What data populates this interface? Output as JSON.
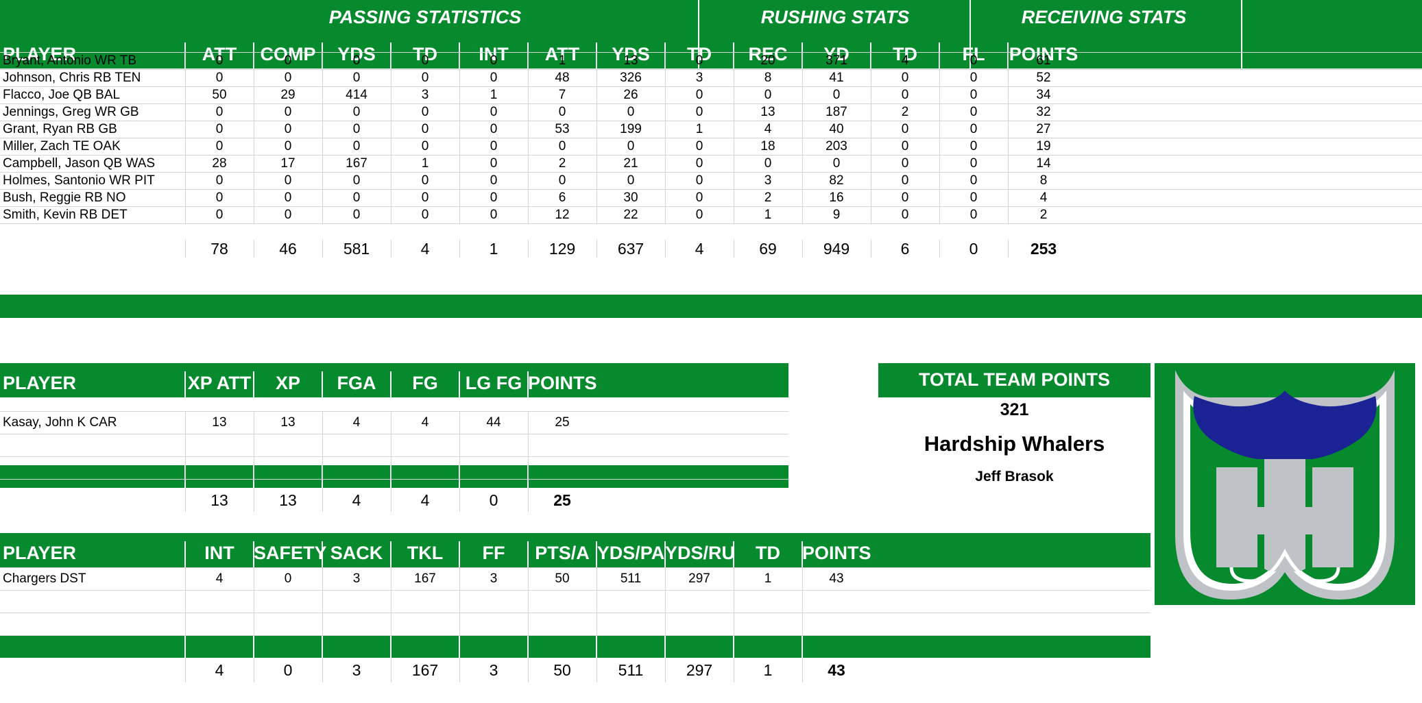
{
  "offense": {
    "groups": {
      "passing": "PASSING STATISTICS",
      "rushing": "RUSHING STATS",
      "receiving": "RECEIVING STATS"
    },
    "columns": [
      "PLAYER",
      "ATT",
      "COMP",
      "YDS",
      "TD",
      "INT",
      "ATT",
      "YDS",
      "TD",
      "REC",
      "YD",
      "TD",
      "FL",
      "POINTS"
    ],
    "rows": [
      [
        "Bryant, Antonio WR TB",
        "0",
        "0",
        "0",
        "0",
        "0",
        "1",
        "13",
        "0",
        "20",
        "371",
        "4",
        "0",
        "61"
      ],
      [
        "Johnson, Chris RB TEN",
        "0",
        "0",
        "0",
        "0",
        "0",
        "48",
        "326",
        "3",
        "8",
        "41",
        "0",
        "0",
        "52"
      ],
      [
        "Flacco, Joe QB BAL",
        "50",
        "29",
        "414",
        "3",
        "1",
        "7",
        "26",
        "0",
        "0",
        "0",
        "0",
        "0",
        "34"
      ],
      [
        "Jennings, Greg WR GB",
        "0",
        "0",
        "0",
        "0",
        "0",
        "0",
        "0",
        "0",
        "13",
        "187",
        "2",
        "0",
        "32"
      ],
      [
        "Grant, Ryan RB GB",
        "0",
        "0",
        "0",
        "0",
        "0",
        "53",
        "199",
        "1",
        "4",
        "40",
        "0",
        "0",
        "27"
      ],
      [
        "Miller, Zach TE OAK",
        "0",
        "0",
        "0",
        "0",
        "0",
        "0",
        "0",
        "0",
        "18",
        "203",
        "0",
        "0",
        "19"
      ],
      [
        "Campbell, Jason QB WAS",
        "28",
        "17",
        "167",
        "1",
        "0",
        "2",
        "21",
        "0",
        "0",
        "0",
        "0",
        "0",
        "14"
      ],
      [
        "Holmes, Santonio WR PIT",
        "0",
        "0",
        "0",
        "0",
        "0",
        "0",
        "0",
        "0",
        "3",
        "82",
        "0",
        "0",
        "8"
      ],
      [
        "Bush, Reggie RB NO",
        "0",
        "0",
        "0",
        "0",
        "0",
        "6",
        "30",
        "0",
        "2",
        "16",
        "0",
        "0",
        "4"
      ],
      [
        "Smith, Kevin RB DET",
        "0",
        "0",
        "0",
        "0",
        "0",
        "12",
        "22",
        "0",
        "1",
        "9",
        "0",
        "0",
        "2"
      ]
    ],
    "totals": [
      "78",
      "46",
      "581",
      "4",
      "1",
      "129",
      "637",
      "4",
      "69",
      "949",
      "6",
      "0",
      "253"
    ]
  },
  "kicking": {
    "columns": [
      "PLAYER",
      "XP ATT",
      "XP",
      "FGA",
      "FG",
      "LG FG",
      "POINTS"
    ],
    "rows": [
      [
        "Kasay, John K CAR",
        "13",
        "13",
        "4",
        "4",
        "44",
        "25"
      ]
    ],
    "totals": [
      "13",
      "13",
      "4",
      "4",
      "0",
      "25"
    ]
  },
  "defense": {
    "columns": [
      "PLAYER",
      "INT",
      "SAFETY",
      "SACK",
      "TKL",
      "FF",
      "PTS/A",
      "YDS/PA",
      "YDS/RU",
      "TD",
      "POINTS"
    ],
    "rows": [
      [
        "Chargers DST",
        "4",
        "0",
        "3",
        "167",
        "3",
        "50",
        "511",
        "297",
        "1",
        "43"
      ]
    ],
    "totals": [
      "4",
      "0",
      "3",
      "167",
      "3",
      "50",
      "511",
      "297",
      "1",
      "43"
    ]
  },
  "team": {
    "total_label": "TOTAL TEAM POINTS",
    "total_points": "321",
    "name": "Hardship Whalers",
    "owner": "Jeff Brasok"
  },
  "logo": {
    "icon": "whalers-logo-icon",
    "green": "#078a2d",
    "blue": "#1a2294",
    "silver": "#bfc3c8"
  },
  "colors": {
    "header_green": "#078a2d"
  }
}
